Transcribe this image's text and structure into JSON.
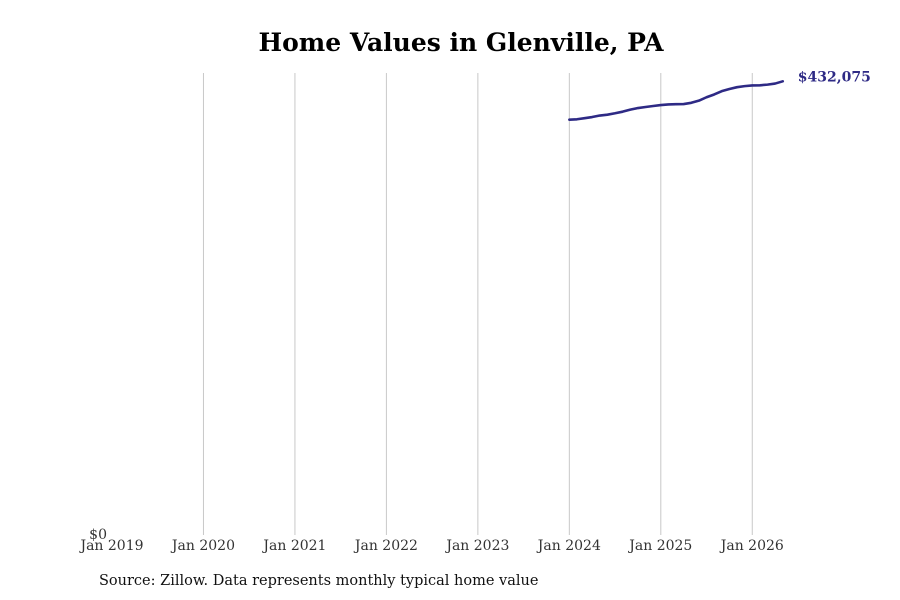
{
  "chart_data": {
    "type": "line",
    "title": "Home Values in Glenville, PA",
    "xlabel": "",
    "ylabel": "",
    "x_ticks": [
      "Jan 2019",
      "Jan 2020",
      "Jan 2021",
      "Jan 2022",
      "Jan 2023",
      "Jan 2024",
      "Jan 2025",
      "Jan 2026"
    ],
    "y_ticks": [
      {
        "value": 0,
        "label": "$0"
      }
    ],
    "xlim": [
      "2019-01",
      "2026-07"
    ],
    "ylim": [
      0,
      432075
    ],
    "grid": {
      "vertical": true,
      "horizontal": false
    },
    "end_label": "$432,075",
    "colors": {
      "line": "#2e2a85",
      "grid": "#c8c8c8",
      "axis_text": "#333333"
    },
    "series": [
      {
        "x": [
          "2024-01",
          "2024-02",
          "2024-03",
          "2024-04",
          "2024-05",
          "2024-06",
          "2024-07",
          "2024-08",
          "2024-09",
          "2024-10",
          "2024-11",
          "2024-12",
          "2025-01",
          "2025-02",
          "2025-03",
          "2025-04",
          "2025-05",
          "2025-06",
          "2025-07",
          "2025-08",
          "2025-09",
          "2025-10",
          "2025-11",
          "2025-12",
          "2026-01",
          "2026-02",
          "2026-03",
          "2026-04",
          "2026-05"
        ],
        "y": [
          388400,
          388800,
          389800,
          390900,
          392300,
          393100,
          394400,
          395900,
          397800,
          399300,
          400300,
          401200,
          402100,
          402700,
          402900,
          403000,
          404200,
          406200,
          409400,
          412000,
          415100,
          417100,
          418800,
          419800,
          420400,
          420600,
          421200,
          422200,
          424300
        ]
      }
    ]
  },
  "source_note": "Source: Zillow. Data represents monthly typical home value"
}
